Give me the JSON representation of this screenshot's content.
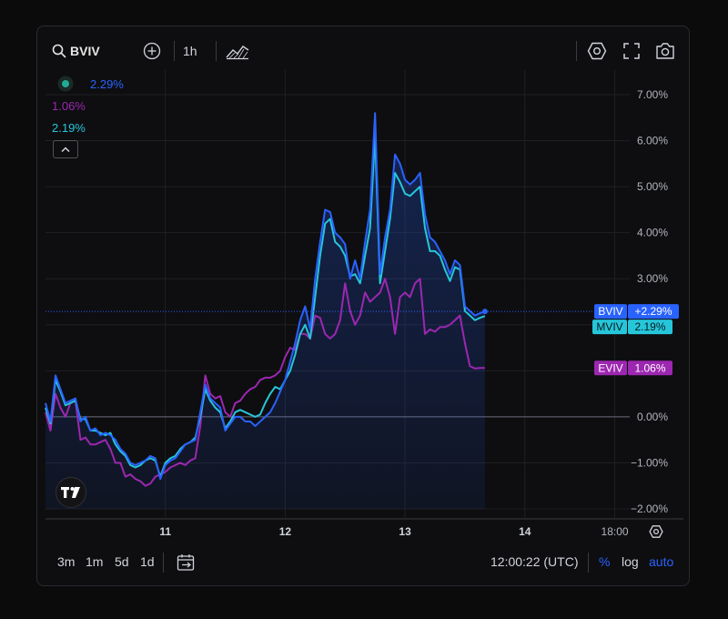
{
  "toolbar": {
    "symbol": "BVIV",
    "interval": "1h"
  },
  "legend": [
    {
      "name": "BVIV",
      "value": "2.29%",
      "color": "#2962ff"
    },
    {
      "name": "EVIV",
      "value": "1.06%",
      "color": "#9c27b0"
    },
    {
      "name": "MVIV",
      "value": "2.19%",
      "color": "#26c6da"
    }
  ],
  "price_tags": [
    {
      "name": "BVIV",
      "value": "+2.29%",
      "bg": "#2962ff",
      "fg": "#ffffff"
    },
    {
      "name": "MVIV",
      "value": "2.19%",
      "bg": "#26c6da",
      "fg": "#0b1a1c"
    },
    {
      "name": "EVIV",
      "value": "1.06%",
      "bg": "#9c27b0",
      "fg": "#ffffff"
    }
  ],
  "bottom_bar": {
    "ranges": [
      "3m",
      "1m",
      "5d",
      "1d"
    ],
    "clock": "12:00:22 (UTC)",
    "percent_label": "%",
    "log_label": "log",
    "auto_label": "auto"
  },
  "colors": {
    "background": "#0e0e10",
    "bviv": "#2962ff",
    "eviv": "#9c27b0",
    "mviv": "#26c6da",
    "accent": "#2962ff"
  },
  "chart_data": {
    "type": "line",
    "y_tick_labels": [
      "7.00%",
      "6.00%",
      "5.00%",
      "4.00%",
      "3.00%",
      "0.00%",
      "−1.00%",
      "−2.00%"
    ],
    "y_ticks": [
      7,
      6,
      5,
      4,
      3,
      0,
      -1,
      -2
    ],
    "ylim": [
      -2.0,
      7.5
    ],
    "x_tick_labels": [
      "11",
      "12",
      "13",
      "14",
      "18:00"
    ],
    "x_ticks": [
      24,
      48,
      72,
      96,
      114
    ],
    "xlim": [
      0,
      117
    ],
    "grid": true,
    "series": [
      {
        "name": "BVIV",
        "color": "#2962ff",
        "points": [
          [
            0,
            0.3
          ],
          [
            1,
            -0.1
          ],
          [
            2,
            0.9
          ],
          [
            3,
            0.6
          ],
          [
            4,
            0.3
          ],
          [
            5,
            0.35
          ],
          [
            6,
            0.4
          ],
          [
            7,
            -0.1
          ],
          [
            8,
            0.0
          ],
          [
            9,
            -0.3
          ],
          [
            10,
            -0.25
          ],
          [
            11,
            -0.4
          ],
          [
            12,
            -0.35
          ],
          [
            13,
            -0.4
          ],
          [
            14,
            -0.5
          ],
          [
            15,
            -0.7
          ],
          [
            16,
            -0.8
          ],
          [
            17,
            -1.0
          ],
          [
            18,
            -1.05
          ],
          [
            19,
            -1.0
          ],
          [
            20,
            -0.95
          ],
          [
            21,
            -0.85
          ],
          [
            22,
            -0.9
          ],
          [
            23,
            -1.35
          ],
          [
            24,
            -1.05
          ],
          [
            25,
            -0.95
          ],
          [
            26,
            -0.9
          ],
          [
            27,
            -0.75
          ],
          [
            28,
            -0.6
          ],
          [
            29,
            -0.55
          ],
          [
            30,
            -0.5
          ],
          [
            31,
            0.1
          ],
          [
            32,
            0.7
          ],
          [
            33,
            0.4
          ],
          [
            34,
            0.3
          ],
          [
            35,
            0.2
          ],
          [
            36,
            -0.3
          ],
          [
            37,
            -0.15
          ],
          [
            38,
            0.0
          ],
          [
            39,
            0.0
          ],
          [
            40,
            -0.1
          ],
          [
            41,
            -0.1
          ],
          [
            42,
            -0.2
          ],
          [
            43,
            -0.1
          ],
          [
            44,
            0.0
          ],
          [
            45,
            0.1
          ],
          [
            46,
            0.3
          ],
          [
            47,
            0.55
          ],
          [
            48,
            0.8
          ],
          [
            49,
            1.2
          ],
          [
            50,
            1.6
          ],
          [
            51,
            2.1
          ],
          [
            52,
            2.4
          ],
          [
            53,
            1.9
          ],
          [
            54,
            3.0
          ],
          [
            55,
            3.8
          ],
          [
            56,
            4.5
          ],
          [
            57,
            4.45
          ],
          [
            58,
            4.0
          ],
          [
            59,
            3.9
          ],
          [
            60,
            3.75
          ],
          [
            61,
            3.0
          ],
          [
            62,
            3.4
          ],
          [
            63,
            3.0
          ],
          [
            64,
            3.8
          ],
          [
            65,
            4.5
          ],
          [
            66,
            6.6
          ],
          [
            67,
            3.1
          ],
          [
            68,
            3.9
          ],
          [
            69,
            4.5
          ],
          [
            70,
            5.7
          ],
          [
            71,
            5.5
          ],
          [
            72,
            5.15
          ],
          [
            73,
            5.05
          ],
          [
            74,
            5.15
          ],
          [
            75,
            5.3
          ],
          [
            76,
            4.4
          ],
          [
            77,
            3.9
          ],
          [
            78,
            3.8
          ],
          [
            79,
            3.6
          ],
          [
            80,
            3.4
          ],
          [
            81,
            3.1
          ],
          [
            82,
            3.4
          ],
          [
            83,
            3.3
          ],
          [
            84,
            2.4
          ],
          [
            85,
            2.3
          ],
          [
            86,
            2.2
          ],
          [
            87,
            2.25
          ],
          [
            88,
            2.29
          ]
        ]
      },
      {
        "name": "MVIV",
        "color": "#26c6da",
        "points": [
          [
            0,
            0.2
          ],
          [
            1,
            -0.15
          ],
          [
            2,
            0.8
          ],
          [
            3,
            0.55
          ],
          [
            4,
            0.25
          ],
          [
            5,
            0.3
          ],
          [
            6,
            0.35
          ],
          [
            7,
            -0.05
          ],
          [
            8,
            -0.05
          ],
          [
            9,
            -0.3
          ],
          [
            10,
            -0.3
          ],
          [
            11,
            -0.35
          ],
          [
            12,
            -0.4
          ],
          [
            13,
            -0.35
          ],
          [
            14,
            -0.6
          ],
          [
            15,
            -0.75
          ],
          [
            16,
            -0.85
          ],
          [
            17,
            -1.05
          ],
          [
            18,
            -1.1
          ],
          [
            19,
            -1.05
          ],
          [
            20,
            -0.95
          ],
          [
            21,
            -0.9
          ],
          [
            22,
            -0.95
          ],
          [
            23,
            -1.3
          ],
          [
            24,
            -1.0
          ],
          [
            25,
            -0.9
          ],
          [
            26,
            -0.85
          ],
          [
            27,
            -0.7
          ],
          [
            28,
            -0.6
          ],
          [
            29,
            -0.55
          ],
          [
            30,
            -0.45
          ],
          [
            31,
            0.0
          ],
          [
            32,
            0.6
          ],
          [
            33,
            0.35
          ],
          [
            34,
            0.2
          ],
          [
            35,
            0.1
          ],
          [
            36,
            -0.25
          ],
          [
            37,
            -0.1
          ],
          [
            38,
            0.1
          ],
          [
            39,
            0.15
          ],
          [
            40,
            0.1
          ],
          [
            41,
            0.05
          ],
          [
            42,
            0.0
          ],
          [
            43,
            0.05
          ],
          [
            44,
            0.3
          ],
          [
            45,
            0.5
          ],
          [
            46,
            0.65
          ],
          [
            47,
            0.6
          ],
          [
            48,
            0.8
          ],
          [
            49,
            1.0
          ],
          [
            50,
            1.35
          ],
          [
            51,
            1.8
          ],
          [
            52,
            2.0
          ],
          [
            53,
            1.7
          ],
          [
            54,
            2.6
          ],
          [
            55,
            3.5
          ],
          [
            56,
            4.2
          ],
          [
            57,
            4.3
          ],
          [
            58,
            3.8
          ],
          [
            59,
            3.7
          ],
          [
            60,
            3.5
          ],
          [
            61,
            3.05
          ],
          [
            62,
            3.1
          ],
          [
            63,
            2.9
          ],
          [
            64,
            3.5
          ],
          [
            65,
            4.1
          ],
          [
            66,
            6.1
          ],
          [
            67,
            2.9
          ],
          [
            68,
            3.6
          ],
          [
            69,
            4.3
          ],
          [
            70,
            5.3
          ],
          [
            71,
            5.1
          ],
          [
            72,
            4.85
          ],
          [
            73,
            4.8
          ],
          [
            74,
            4.9
          ],
          [
            75,
            5.0
          ],
          [
            76,
            4.1
          ],
          [
            77,
            3.6
          ],
          [
            78,
            3.6
          ],
          [
            79,
            3.5
          ],
          [
            80,
            3.2
          ],
          [
            81,
            2.95
          ],
          [
            82,
            3.25
          ],
          [
            83,
            3.2
          ],
          [
            84,
            2.3
          ],
          [
            85,
            2.2
          ],
          [
            86,
            2.1
          ],
          [
            87,
            2.15
          ],
          [
            88,
            2.19
          ]
        ]
      },
      {
        "name": "EVIV",
        "color": "#9c27b0",
        "points": [
          [
            0,
            0.1
          ],
          [
            1,
            -0.3
          ],
          [
            2,
            0.5
          ],
          [
            3,
            0.2
          ],
          [
            4,
            0.0
          ],
          [
            5,
            0.3
          ],
          [
            6,
            0.35
          ],
          [
            7,
            -0.5
          ],
          [
            8,
            -0.45
          ],
          [
            9,
            -0.6
          ],
          [
            10,
            -0.6
          ],
          [
            11,
            -0.55
          ],
          [
            12,
            -0.5
          ],
          [
            13,
            -0.7
          ],
          [
            14,
            -1.0
          ],
          [
            15,
            -1.0
          ],
          [
            16,
            -1.3
          ],
          [
            17,
            -1.25
          ],
          [
            18,
            -1.35
          ],
          [
            19,
            -1.4
          ],
          [
            20,
            -1.5
          ],
          [
            21,
            -1.45
          ],
          [
            22,
            -1.3
          ],
          [
            23,
            -1.25
          ],
          [
            24,
            -1.2
          ],
          [
            25,
            -1.1
          ],
          [
            26,
            -1.05
          ],
          [
            27,
            -1.0
          ],
          [
            28,
            -1.05
          ],
          [
            29,
            -0.95
          ],
          [
            30,
            -0.9
          ],
          [
            31,
            -0.2
          ],
          [
            32,
            0.9
          ],
          [
            33,
            0.5
          ],
          [
            34,
            0.4
          ],
          [
            35,
            0.45
          ],
          [
            36,
            0.1
          ],
          [
            37,
            0.0
          ],
          [
            38,
            0.3
          ],
          [
            39,
            0.35
          ],
          [
            40,
            0.5
          ],
          [
            41,
            0.6
          ],
          [
            42,
            0.65
          ],
          [
            43,
            0.8
          ],
          [
            44,
            0.85
          ],
          [
            45,
            0.85
          ],
          [
            46,
            0.9
          ],
          [
            47,
            1.0
          ],
          [
            48,
            1.3
          ],
          [
            49,
            1.5
          ],
          [
            50,
            1.45
          ],
          [
            51,
            1.8
          ],
          [
            52,
            1.8
          ],
          [
            53,
            1.7
          ],
          [
            54,
            2.2
          ],
          [
            55,
            2.15
          ],
          [
            56,
            1.8
          ],
          [
            57,
            1.7
          ],
          [
            58,
            1.8
          ],
          [
            59,
            2.1
          ],
          [
            60,
            2.9
          ],
          [
            61,
            2.3
          ],
          [
            62,
            2.0
          ],
          [
            63,
            2.2
          ],
          [
            64,
            2.7
          ],
          [
            65,
            2.5
          ],
          [
            66,
            2.6
          ],
          [
            67,
            2.7
          ],
          [
            68,
            3.0
          ],
          [
            69,
            2.6
          ],
          [
            70,
            1.8
          ],
          [
            71,
            2.6
          ],
          [
            72,
            2.7
          ],
          [
            73,
            2.6
          ],
          [
            74,
            2.9
          ],
          [
            75,
            3.0
          ],
          [
            76,
            1.8
          ],
          [
            77,
            1.9
          ],
          [
            78,
            1.85
          ],
          [
            79,
            1.95
          ],
          [
            80,
            1.95
          ],
          [
            81,
            2.0
          ],
          [
            82,
            2.1
          ],
          [
            83,
            2.2
          ],
          [
            84,
            1.6
          ],
          [
            85,
            1.1
          ],
          [
            86,
            1.05
          ],
          [
            87,
            1.06
          ],
          [
            88,
            1.06
          ]
        ]
      }
    ]
  }
}
